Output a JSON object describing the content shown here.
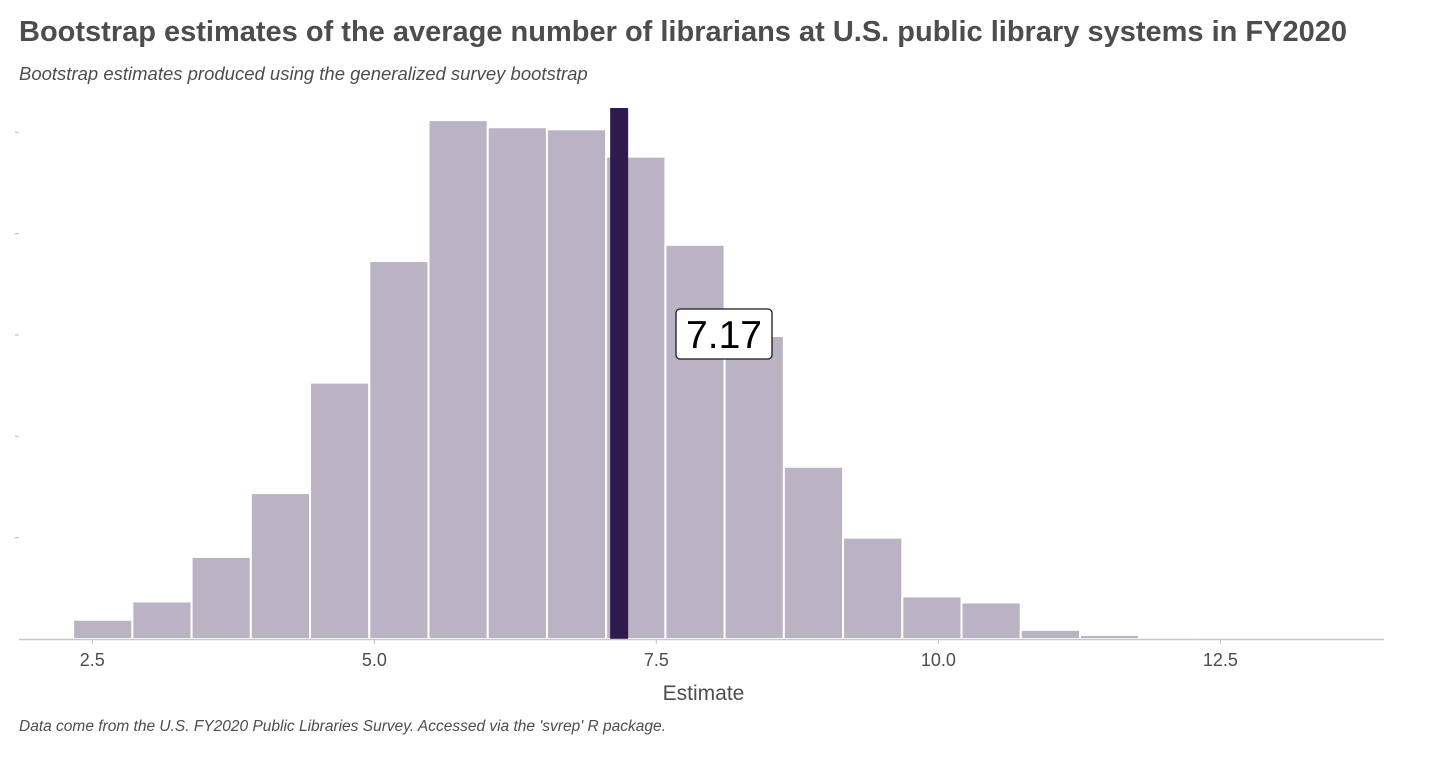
{
  "title": "Bootstrap estimates of the average number of librarians at U.S. public library systems in FY2020",
  "subtitle": "Bootstrap estimates produced using the generalized survey bootstrap",
  "caption": "Data come from the U.S. FY2020 Public Libraries Survey. Accessed via the 'svrep' R package.",
  "colors": {
    "bar_fill": "#b9b3c4",
    "highlight_line": "#2e1a4d",
    "axis": "#c8c8c8",
    "text": "#4d4d4d"
  },
  "chart_data": {
    "type": "bar",
    "subtype": "histogram",
    "xlabel": "Estimate",
    "ylabel": "",
    "xlim": [
      1.85,
      13.95
    ],
    "ylim": [
      0,
      525
    ],
    "x_ticks": [
      2.5,
      5.0,
      7.5,
      10.0,
      12.5
    ],
    "x_tick_labels": [
      "2.5",
      "5.0",
      "7.5",
      "10.0",
      "12.5"
    ],
    "y_ticks": [
      0,
      100,
      200,
      300,
      400,
      500
    ],
    "y_tick_labels": [],
    "grid": false,
    "bin_width": 0.525,
    "bin_starts": [
      2.33,
      2.855,
      3.38,
      3.905,
      4.43,
      4.955,
      5.48,
      6.005,
      6.53,
      7.055,
      7.58,
      8.105,
      8.63,
      9.155,
      9.68,
      10.205,
      10.73,
      11.255,
      11.78,
      12.305
    ],
    "counts": [
      19,
      37,
      81,
      144,
      253,
      373,
      512,
      505,
      503,
      476,
      389,
      299,
      170,
      100,
      42,
      36,
      9,
      4,
      2,
      0
    ],
    "reference_line": {
      "x": 7.17,
      "label": "7.17"
    }
  }
}
